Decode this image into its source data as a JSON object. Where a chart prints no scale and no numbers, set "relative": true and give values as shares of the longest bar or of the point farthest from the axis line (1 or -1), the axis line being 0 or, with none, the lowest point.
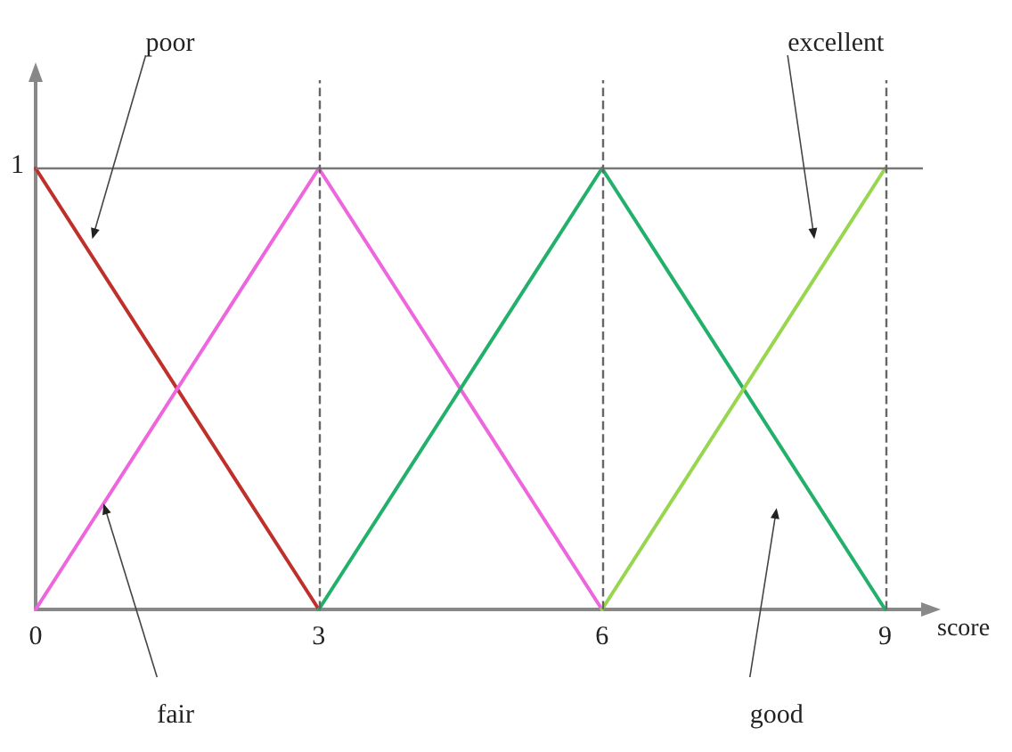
{
  "chart_data": {
    "type": "line",
    "xlabel": "score",
    "xlim": [
      0,
      9.4
    ],
    "xticks": [
      0,
      3,
      6,
      9
    ],
    "relative": true,
    "grid": false,
    "marker": "none",
    "line_style": "solid",
    "series": [
      {
        "color": "#c0302a",
        "x": [
          0,
          3
        ],
        "values": [
          1,
          0
        ]
      },
      {
        "color": "#ee66dd",
        "x": [
          0,
          3,
          6
        ],
        "values": [
          0,
          1,
          0
        ]
      },
      {
        "color": "#22b06a",
        "x": [
          3,
          6,
          9
        ],
        "values": [
          0,
          1,
          0
        ]
      },
      {
        "color": "#99d650",
        "x": [
          6,
          9
        ],
        "values": [
          0,
          1
        ]
      }
    ],
    "ref_lines": [
      {
        "axis": "y",
        "value": 1,
        "color": "#777777",
        "line_style": "solid"
      },
      {
        "axis": "x",
        "value": 3,
        "color": "#666666",
        "line_style": "dashed"
      },
      {
        "axis": "x",
        "value": 6,
        "color": "#666666",
        "line_style": "dashed"
      },
      {
        "axis": "x",
        "value": 9,
        "color": "#666666",
        "line_style": "dashed"
      }
    ],
    "annotations": [
      "1",
      "poor",
      "excellent",
      "fair",
      "good"
    ]
  }
}
